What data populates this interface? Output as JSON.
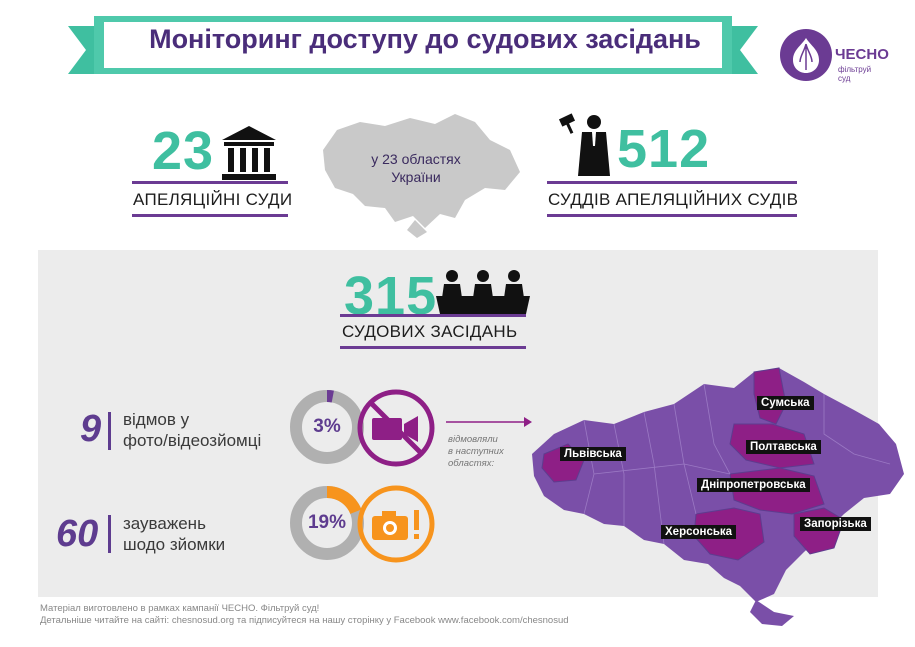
{
  "header": {
    "title": "Моніторинг доступу до судових засідань"
  },
  "logo": {
    "name": "ЧЕСНО",
    "tagline": "фільтруй суд"
  },
  "appeal_courts": {
    "count": "23",
    "label": "АПЕЛЯЦІЙНІ СУДИ"
  },
  "map_top": {
    "caption_line1": "у 23 областях",
    "caption_line2": "України"
  },
  "judges": {
    "count": "512",
    "label": "СУДДІВ АПЕЛЯЦІЙНИХ СУДІВ"
  },
  "hearings": {
    "count": "315",
    "label": "СУДОВИХ ЗАСІДАНЬ"
  },
  "refusals": {
    "count": "9",
    "line1": "відмов у",
    "line2": "фото/відеозйомці",
    "percent_label": "3%",
    "percent": 3
  },
  "remarks": {
    "count": "60",
    "line1": "зауважень",
    "line2": "шодо зйомки",
    "percent_label": "19%",
    "percent": 19
  },
  "arrow_note": {
    "line1": "відмовляли",
    "line2": "в наступних",
    "line3": "областях:"
  },
  "regions": [
    "Сумська",
    "Полтавська",
    "Львівська",
    "Дніпропетровська",
    "Херсонська",
    "Запорізька"
  ],
  "footer": {
    "line1": "Матеріал виготовлено в рамках кампанії ЧЕСНО. Фільтруй суд!",
    "line2": "Детальніше читайте на сайті: chesnosud.org та підписуйтеся на нашу сторінку у Facebook www.facebook.com/chesnosud"
  },
  "colors": {
    "teal": "#3fbfa0",
    "purple": "#6b3b93",
    "magenta": "#8e1f86",
    "orange": "#f7941d",
    "gray": "#b0b0b0"
  }
}
